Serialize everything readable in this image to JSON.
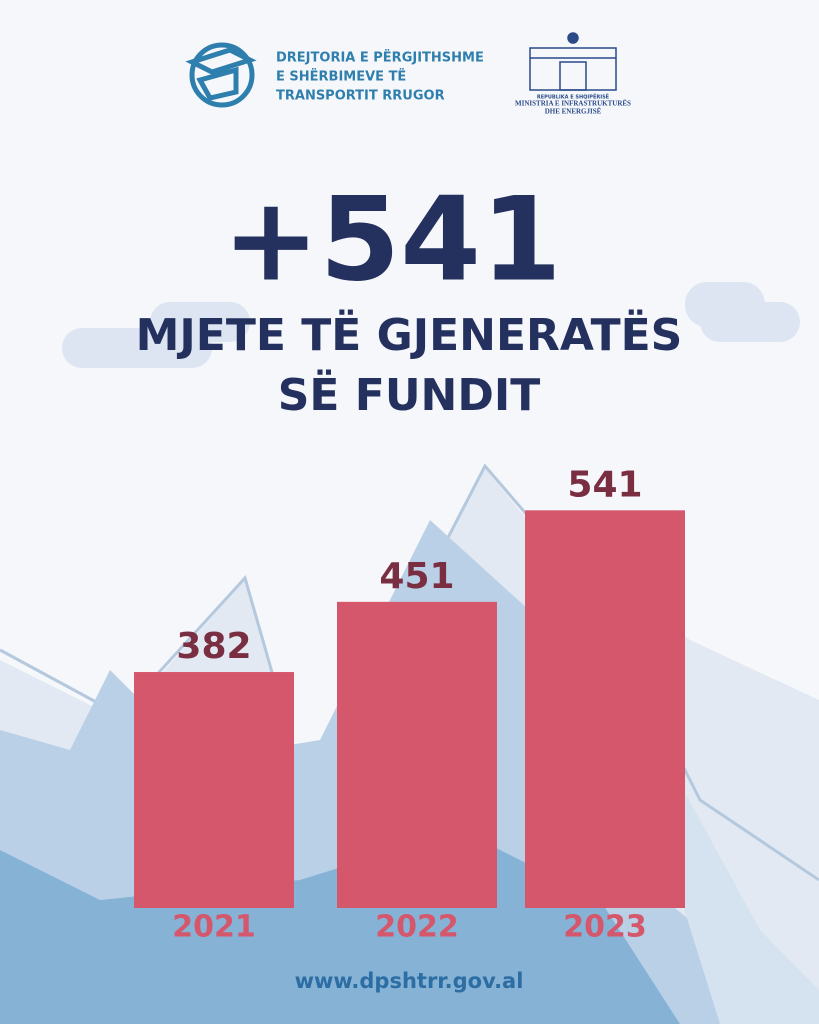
{
  "header": {
    "agency_lines": [
      "DREJTORIA E PËRGJITHSHME",
      "E SHËRBIMEVE TË",
      "TRANSPORTIT RRUGOR"
    ],
    "ministry_lines": [
      "REPUBLIKA E SHQIPËRISË",
      "MINISTRIA E INFRASTRUKTURËS",
      "DHE ENERGJISË"
    ]
  },
  "headline": "+541",
  "subtitle_lines": [
    "MJETE TË GJENERATËS",
    "SË FUNDIT"
  ],
  "chart_data": {
    "type": "bar",
    "categories": [
      "2021",
      "2022",
      "2023"
    ],
    "values": [
      382,
      451,
      541
    ],
    "color": "#d5576b",
    "ylim": [
      150,
      560
    ]
  },
  "footer": "www.dpshtrr.gov.al"
}
